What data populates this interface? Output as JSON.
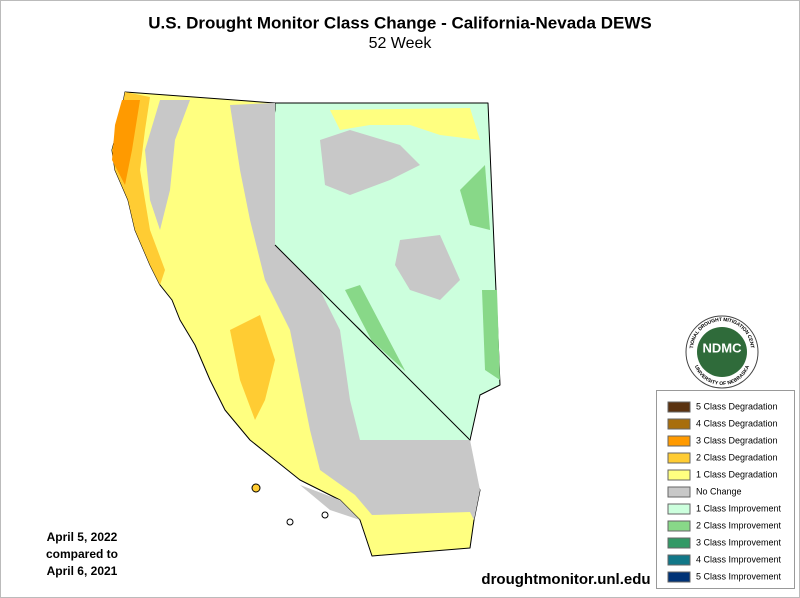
{
  "header": {
    "title": "U.S. Drought Monitor Class Change - California-Nevada DEWS",
    "subtitle": "52 Week"
  },
  "legend": {
    "items": [
      {
        "label": "5 Class Degradation",
        "color": "#5a3210"
      },
      {
        "label": "4 Class Degradation",
        "color": "#a86e0c"
      },
      {
        "label": "3 Class Degradation",
        "color": "#ff9a00"
      },
      {
        "label": "2 Class Degradation",
        "color": "#ffcc33"
      },
      {
        "label": "1 Class Degradation",
        "color": "#ffff80"
      },
      {
        "label": "No Change",
        "color": "#c8c8c8"
      },
      {
        "label": "1 Class Improvement",
        "color": "#ccffdd"
      },
      {
        "label": "2 Class Improvement",
        "color": "#88d888"
      },
      {
        "label": "3 Class Improvement",
        "color": "#339966"
      },
      {
        "label": "4 Class Improvement",
        "color": "#117788"
      },
      {
        "label": "5 Class Improvement",
        "color": "#003377"
      }
    ]
  },
  "dates": [
    "April 5, 2022",
    "compared to",
    "April 6, 2021"
  ],
  "footer": {
    "url": "droughtmonitor.unl.edu"
  },
  "logo": {
    "text": "NDMC",
    "ring_top": "NATIONAL DROUGHT MITIGATION CENTER",
    "ring_bottom": "UNIVERSITY OF NEBRASKA"
  }
}
